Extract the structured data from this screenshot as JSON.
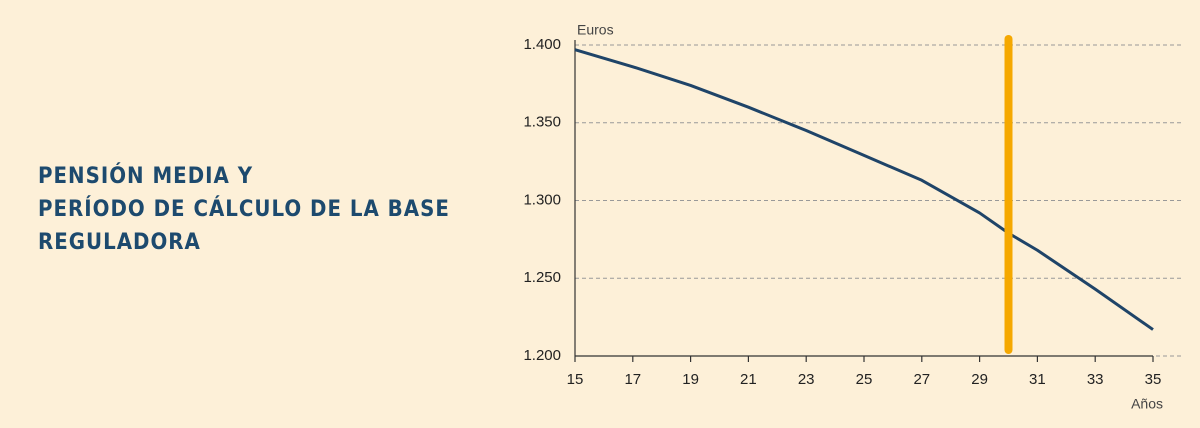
{
  "chart_data": {
    "type": "line",
    "title": [
      "PENSIÓN MEDIA Y",
      "PERÍODO DE CÁLCULO DE LA BASE",
      "REGULADORA"
    ],
    "y_label": "Euros",
    "x_label": "Años",
    "x": [
      15,
      17,
      19,
      21,
      23,
      25,
      27,
      29,
      30,
      31,
      33,
      35
    ],
    "series": [
      {
        "color": "#1f4468",
        "values": [
          1397,
          1386,
          1374,
          1360,
          1345,
          1329,
          1313,
          1292,
          1279,
          1268,
          1243,
          1217
        ]
      }
    ],
    "xlim": [
      15,
      35
    ],
    "xticks": [
      15,
      17,
      19,
      21,
      23,
      25,
      27,
      29,
      31,
      33,
      35
    ],
    "ylim": [
      1200,
      1400
    ],
    "yticks": [
      {
        "value": 1200,
        "label": "1.200"
      },
      {
        "value": 1250,
        "label": "1.250"
      },
      {
        "value": 1300,
        "label": "1.300"
      },
      {
        "value": 1350,
        "label": "1.350"
      },
      {
        "value": 1400,
        "label": "1.400"
      }
    ],
    "grid": true,
    "highlight_x": 30,
    "highlight_color": "#f5a800"
  }
}
